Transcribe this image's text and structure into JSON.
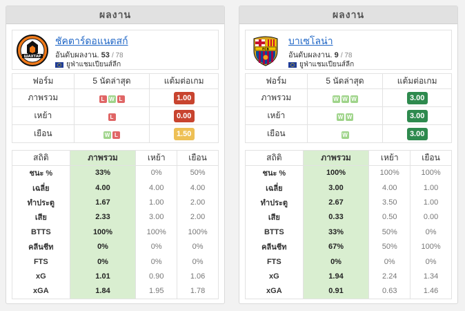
{
  "left": {
    "header": "ผลงาน",
    "team": {
      "name": "ชัคตาร์ดอแนตสก์",
      "rank_label": "อันดับผลงาน.",
      "rank": "53",
      "rank_total": "/ 78",
      "league": "ยูฟ่าแชมเปียนส์ลีก",
      "logo_text": "ШАХТАР",
      "logo_icon": "shakhtar-crest"
    },
    "form": {
      "headers": [
        "ฟอร์ม",
        "5 นัดล่าสุด",
        "แต้มต่อเกม"
      ],
      "rows": [
        {
          "label": "ภาพรวม",
          "results": [
            "L",
            "W",
            "L"
          ],
          "ppg": "1.00",
          "ppg_color": "#c8442f"
        },
        {
          "label": "เหย้า",
          "results": [
            "L"
          ],
          "ppg": "0.00",
          "ppg_color": "#c8442f"
        },
        {
          "label": "เยือน",
          "results": [
            "W",
            "L"
          ],
          "ppg": "1.50",
          "ppg_color": "#eec055"
        }
      ]
    },
    "stats": {
      "headers": [
        "สถิติ",
        "ภาพรวม",
        "เหย้า",
        "เยือน"
      ],
      "rows": [
        {
          "label": "ชนะ %",
          "overall": "33%",
          "home": "0%",
          "away": "50%"
        },
        {
          "label": "เฉลี่ย",
          "overall": "4.00",
          "home": "4.00",
          "away": "4.00"
        },
        {
          "label": "ทำประตู",
          "overall": "1.67",
          "home": "1.00",
          "away": "2.00"
        },
        {
          "label": "เสีย",
          "overall": "2.33",
          "home": "3.00",
          "away": "2.00"
        },
        {
          "label": "BTTS",
          "overall": "100%",
          "home": "100%",
          "away": "100%"
        },
        {
          "label": "คลีนชีท",
          "overall": "0%",
          "home": "0%",
          "away": "0%"
        },
        {
          "label": "FTS",
          "overall": "0%",
          "home": "0%",
          "away": "0%"
        },
        {
          "label": "xG",
          "overall": "1.01",
          "home": "0.90",
          "away": "1.06"
        },
        {
          "label": "xGA",
          "overall": "1.84",
          "home": "1.95",
          "away": "1.78"
        }
      ]
    }
  },
  "right": {
    "header": "ผลงาน",
    "team": {
      "name": "บาเซโลน่า",
      "rank_label": "อันดับผลงาน.",
      "rank": "9",
      "rank_total": "/ 78",
      "league": "ยูฟ่าแชมเปียนส์ลีก",
      "logo_text": "FCB",
      "logo_icon": "barcelona-crest"
    },
    "form": {
      "headers": [
        "ฟอร์ม",
        "5 นัดล่าสุด",
        "แต้มต่อเกม"
      ],
      "rows": [
        {
          "label": "ภาพรวม",
          "results": [
            "W",
            "W",
            "W"
          ],
          "ppg": "3.00",
          "ppg_color": "#2e8a4e"
        },
        {
          "label": "เหย้า",
          "results": [
            "W",
            "W"
          ],
          "ppg": "3.00",
          "ppg_color": "#2e8a4e"
        },
        {
          "label": "เยือน",
          "results": [
            "W"
          ],
          "ppg": "3.00",
          "ppg_color": "#2e8a4e"
        }
      ]
    },
    "stats": {
      "headers": [
        "สถิติ",
        "ภาพรวม",
        "เหย้า",
        "เยือน"
      ],
      "rows": [
        {
          "label": "ชนะ %",
          "overall": "100%",
          "home": "100%",
          "away": "100%"
        },
        {
          "label": "เฉลี่ย",
          "overall": "3.00",
          "home": "4.00",
          "away": "1.00"
        },
        {
          "label": "ทำประตู",
          "overall": "2.67",
          "home": "3.50",
          "away": "1.00"
        },
        {
          "label": "เสีย",
          "overall": "0.33",
          "home": "0.50",
          "away": "0.00"
        },
        {
          "label": "BTTS",
          "overall": "33%",
          "home": "50%",
          "away": "0%"
        },
        {
          "label": "คลีนชีท",
          "overall": "67%",
          "home": "50%",
          "away": "100%"
        },
        {
          "label": "FTS",
          "overall": "0%",
          "home": "0%",
          "away": "0%"
        },
        {
          "label": "xG",
          "overall": "1.94",
          "home": "2.24",
          "away": "1.34"
        },
        {
          "label": "xGA",
          "overall": "0.91",
          "home": "0.63",
          "away": "1.46"
        }
      ]
    }
  }
}
